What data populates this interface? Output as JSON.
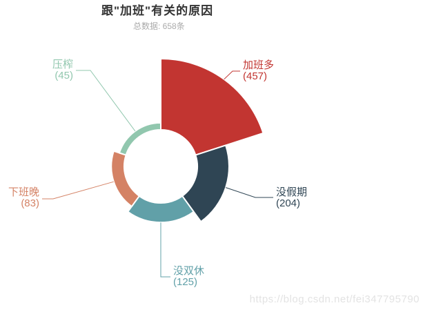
{
  "page": {
    "background_color": "#ffffff"
  },
  "header": {
    "title": "跟\"加班\"有关的原因",
    "subtitle": "总数据: 658条"
  },
  "watermark": {
    "text": "https://blog.csdn.net/fei347795790"
  },
  "chart_data": {
    "type": "pie",
    "variant": "nightingale_rose_area",
    "title": "跟\"加班\"有关的原因",
    "subtitle": "总数据: 658条",
    "total_count": 658,
    "unit": "条",
    "legend_position": "none",
    "grid": "off",
    "label_format": "{name}\n({value})",
    "series": [
      {
        "name": "加班多",
        "value": 457,
        "color": "#c23531"
      },
      {
        "name": "没假期",
        "value": 204,
        "color": "#2f4554"
      },
      {
        "name": "没双休",
        "value": 125,
        "color": "#61a0a8"
      },
      {
        "name": "下班晚",
        "value": 83,
        "color": "#d48265"
      },
      {
        "name": "压榨",
        "value": 45,
        "color": "#91c7ae"
      }
    ]
  }
}
